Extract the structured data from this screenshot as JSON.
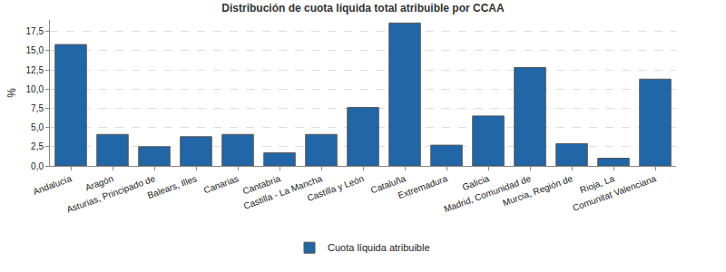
{
  "chart_data": {
    "type": "bar",
    "title": "Distribución de cuota líquida total atribuible por CCAA",
    "y_label": "%",
    "categories": [
      "Andalucía",
      "Aragón",
      "Asturias, Principado de",
      "Balears, Illes",
      "Canarias",
      "Cantabria",
      "Castilla - La Mancha",
      "Castilla y León",
      "Cataluña",
      "Extremadura",
      "Galicia",
      "Madrid, Comunidad de",
      "Murcia, Región de",
      "Rioja, La",
      "Comunitat Valenciana"
    ],
    "series": [
      {
        "name": "Cuota líquida atribuible",
        "color": "#2166a6",
        "values": [
          15.8,
          4.1,
          2.5,
          3.8,
          4.1,
          1.7,
          4.1,
          7.6,
          18.6,
          2.7,
          6.5,
          12.8,
          2.9,
          1.0,
          11.3
        ]
      }
    ],
    "ylim": [
      0,
      19
    ],
    "yticks": [
      {
        "value": 0,
        "label": "0,0"
      },
      {
        "value": 2.5,
        "label": "2,5"
      },
      {
        "value": 5,
        "label": "5,0"
      },
      {
        "value": 7.5,
        "label": "7,5"
      },
      {
        "value": 10,
        "label": "10,0"
      },
      {
        "value": 12.5,
        "label": "12,5"
      },
      {
        "value": 15,
        "label": "15,0"
      },
      {
        "value": 17.5,
        "label": "17,5"
      }
    ],
    "grid": true,
    "legend": "bottom"
  }
}
